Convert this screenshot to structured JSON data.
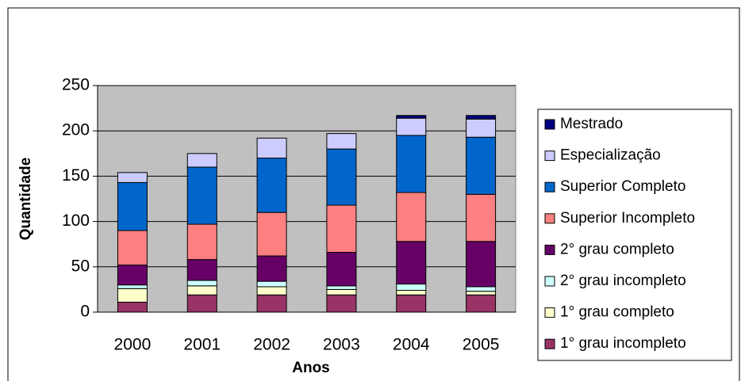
{
  "chart_data": {
    "type": "stacked_bar",
    "x_label": "Anos",
    "y_label": "Quantidade",
    "categories": [
      "2000",
      "2001",
      "2002",
      "2003",
      "2004",
      "2005"
    ],
    "series": [
      {
        "name": "1° grau incompleto",
        "color": "#993366",
        "values": [
          11,
          19,
          19,
          19,
          19,
          19
        ]
      },
      {
        "name": "1° grau completo",
        "color": "#ffffcc",
        "values": [
          15,
          10,
          9,
          6,
          5,
          4
        ]
      },
      {
        "name": "2° grau incompleto",
        "color": "#ccffff",
        "values": [
          4,
          6,
          6,
          4,
          7,
          5
        ]
      },
      {
        "name": "2° grau completo",
        "color": "#660066",
        "values": [
          22,
          23,
          28,
          37,
          47,
          50
        ]
      },
      {
        "name": "Superior Incompleto",
        "color": "#ff8080",
        "values": [
          38,
          39,
          48,
          52,
          54,
          52
        ]
      },
      {
        "name": "Superior Completo",
        "color": "#0066cc",
        "values": [
          53,
          63,
          60,
          62,
          63,
          63
        ]
      },
      {
        "name": "Especialização",
        "color": "#ccccff",
        "values": [
          11,
          15,
          22,
          17,
          19,
          20
        ]
      },
      {
        "name": "Mestrado",
        "color": "#000080",
        "values": [
          0,
          0,
          0,
          0,
          3,
          4
        ]
      }
    ],
    "ylim": [
      0,
      250
    ],
    "yticks": [
      0,
      50,
      100,
      150,
      200,
      250
    ],
    "grid": true,
    "legend": "right",
    "plot_background": "#c0c0c0"
  }
}
